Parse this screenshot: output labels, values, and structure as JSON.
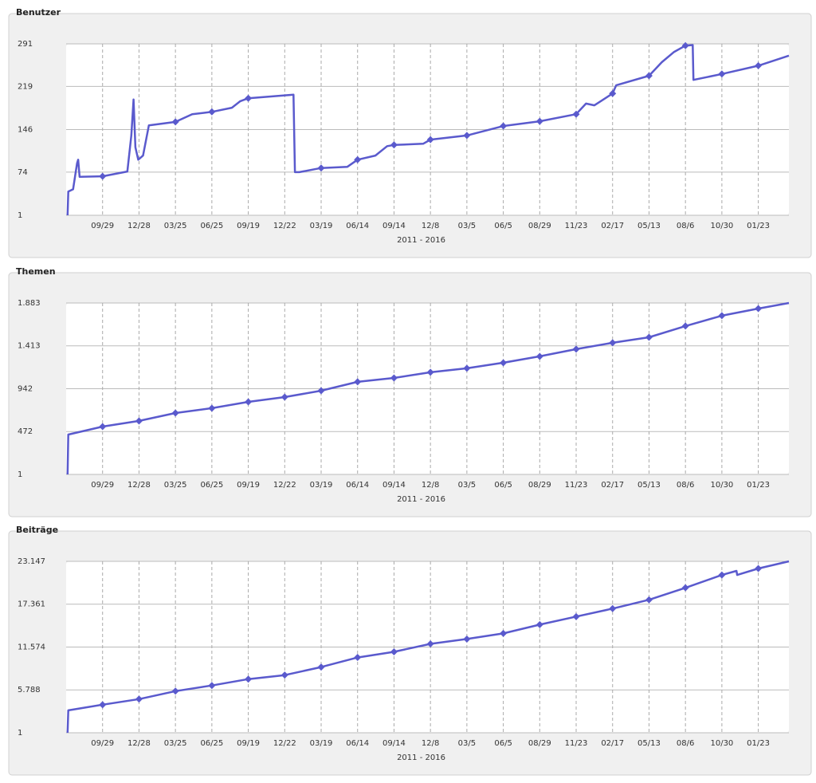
{
  "chart_data": [
    {
      "type": "line",
      "title": "Benutzer",
      "xlabel": "2011 - 2016",
      "color": "#5a5acd",
      "grid": true,
      "xlim": [
        0,
        19.84
      ],
      "xticks": [
        {
          "value": 1,
          "label": "09/29"
        },
        {
          "value": 2,
          "label": "12/28"
        },
        {
          "value": 3,
          "label": "03/25"
        },
        {
          "value": 4,
          "label": "06/25"
        },
        {
          "value": 5,
          "label": "09/19"
        },
        {
          "value": 6,
          "label": "12/22"
        },
        {
          "value": 7,
          "label": "03/19"
        },
        {
          "value": 8,
          "label": "06/14"
        },
        {
          "value": 9,
          "label": "09/14"
        },
        {
          "value": 10,
          "label": "12/8"
        },
        {
          "value": 11,
          "label": "03/5"
        },
        {
          "value": 12,
          "label": "06/5"
        },
        {
          "value": 13,
          "label": "08/29"
        },
        {
          "value": 14,
          "label": "11/23"
        },
        {
          "value": 15,
          "label": "02/17"
        },
        {
          "value": 16,
          "label": "05/13"
        },
        {
          "value": 17,
          "label": "08/6"
        },
        {
          "value": 18,
          "label": "10/30"
        },
        {
          "value": 19,
          "label": "01/23"
        }
      ],
      "ylim": [
        1,
        291
      ],
      "yticks": [
        1,
        74,
        146,
        219,
        291
      ],
      "x": [
        0.04,
        0.06,
        0.19,
        0.3,
        0.33,
        0.37,
        1,
        1.68,
        1.79,
        1.85,
        1.9,
        1.98,
        2.11,
        2.27,
        3,
        3.46,
        4,
        4.55,
        4.78,
        5,
        6.24,
        6.28,
        6.4,
        7,
        7.72,
        8,
        8.49,
        8.81,
        9,
        9.8,
        10,
        11,
        12,
        13,
        14,
        14.27,
        14.5,
        15,
        15.1,
        16,
        16.35,
        16.68,
        17,
        17.2,
        17.22,
        18,
        19,
        19.84
      ],
      "values": [
        1,
        41,
        45,
        89,
        95,
        66,
        67,
        75,
        136,
        197,
        116,
        95,
        102,
        153,
        159,
        172,
        176,
        183,
        194,
        199,
        205,
        74,
        74,
        81,
        83,
        95,
        102,
        118,
        120,
        122,
        129,
        136,
        152,
        160,
        172,
        190,
        187,
        207,
        221,
        237,
        260,
        277,
        288,
        289,
        230,
        240,
        254,
        271
      ]
    },
    {
      "type": "line",
      "title": "Themen",
      "xlabel": "2011 - 2016",
      "color": "#5a5acd",
      "grid": true,
      "xlim": [
        0,
        19.84
      ],
      "xticks": [
        {
          "value": 1,
          "label": "09/29"
        },
        {
          "value": 2,
          "label": "12/28"
        },
        {
          "value": 3,
          "label": "03/25"
        },
        {
          "value": 4,
          "label": "06/25"
        },
        {
          "value": 5,
          "label": "09/19"
        },
        {
          "value": 6,
          "label": "12/22"
        },
        {
          "value": 7,
          "label": "03/19"
        },
        {
          "value": 8,
          "label": "06/14"
        },
        {
          "value": 9,
          "label": "09/14"
        },
        {
          "value": 10,
          "label": "12/8"
        },
        {
          "value": 11,
          "label": "03/5"
        },
        {
          "value": 12,
          "label": "06/5"
        },
        {
          "value": 13,
          "label": "08/29"
        },
        {
          "value": 14,
          "label": "11/23"
        },
        {
          "value": 15,
          "label": "02/17"
        },
        {
          "value": 16,
          "label": "05/13"
        },
        {
          "value": 17,
          "label": "08/6"
        },
        {
          "value": 18,
          "label": "10/30"
        },
        {
          "value": 19,
          "label": "01/23"
        }
      ],
      "ylim": [
        1,
        1883
      ],
      "yticks": [
        1,
        {
          "value": 472,
          "label": "472"
        },
        {
          "value": 942,
          "label": "942"
        },
        {
          "value": 1413,
          "label": "1.413"
        },
        {
          "value": 1883,
          "label": "1.883"
        }
      ],
      "x": [
        0.04,
        0.06,
        1,
        2,
        3,
        4,
        5,
        6,
        7,
        8,
        9,
        10,
        11,
        12,
        13,
        14,
        15,
        16,
        17,
        18,
        19,
        19.84
      ],
      "values": [
        1,
        439,
        526,
        588,
        675,
        728,
        798,
        850,
        920,
        1017,
        1060,
        1122,
        1166,
        1227,
        1297,
        1376,
        1446,
        1507,
        1630,
        1744,
        1822,
        1883
      ]
    },
    {
      "type": "line",
      "title": "Beiträge",
      "xlabel": "2011 - 2016",
      "color": "#5a5acd",
      "grid": true,
      "xlim": [
        0,
        19.84
      ],
      "xticks": [
        {
          "value": 1,
          "label": "09/29"
        },
        {
          "value": 2,
          "label": "12/28"
        },
        {
          "value": 3,
          "label": "03/25"
        },
        {
          "value": 4,
          "label": "06/25"
        },
        {
          "value": 5,
          "label": "09/19"
        },
        {
          "value": 6,
          "label": "12/22"
        },
        {
          "value": 7,
          "label": "03/19"
        },
        {
          "value": 8,
          "label": "06/14"
        },
        {
          "value": 9,
          "label": "09/14"
        },
        {
          "value": 10,
          "label": "12/8"
        },
        {
          "value": 11,
          "label": "03/5"
        },
        {
          "value": 12,
          "label": "06/5"
        },
        {
          "value": 13,
          "label": "08/29"
        },
        {
          "value": 14,
          "label": "11/23"
        },
        {
          "value": 15,
          "label": "02/17"
        },
        {
          "value": 16,
          "label": "05/13"
        },
        {
          "value": 17,
          "label": "08/6"
        },
        {
          "value": 18,
          "label": "10/30"
        },
        {
          "value": 19,
          "label": "01/23"
        }
      ],
      "ylim": [
        1,
        23147
      ],
      "yticks": [
        1,
        {
          "value": 5788,
          "label": "5.788"
        },
        {
          "value": 11574,
          "label": "11.574"
        },
        {
          "value": 17361,
          "label": "17.361"
        },
        {
          "value": 23147,
          "label": "23.147"
        }
      ],
      "x": [
        0.04,
        0.06,
        1,
        2,
        3,
        4,
        5,
        6,
        7,
        8,
        9,
        10,
        11,
        12,
        13,
        14,
        15,
        16,
        17,
        18,
        18.4,
        18.42,
        19,
        19.84
      ],
      "values": [
        1,
        3030,
        3786,
        4544,
        5625,
        6382,
        7247,
        7788,
        8870,
        10168,
        10925,
        12007,
        12656,
        13413,
        14603,
        15685,
        16766,
        17956,
        19578,
        21309,
        21850,
        21309,
        22174,
        23147
      ]
    }
  ]
}
